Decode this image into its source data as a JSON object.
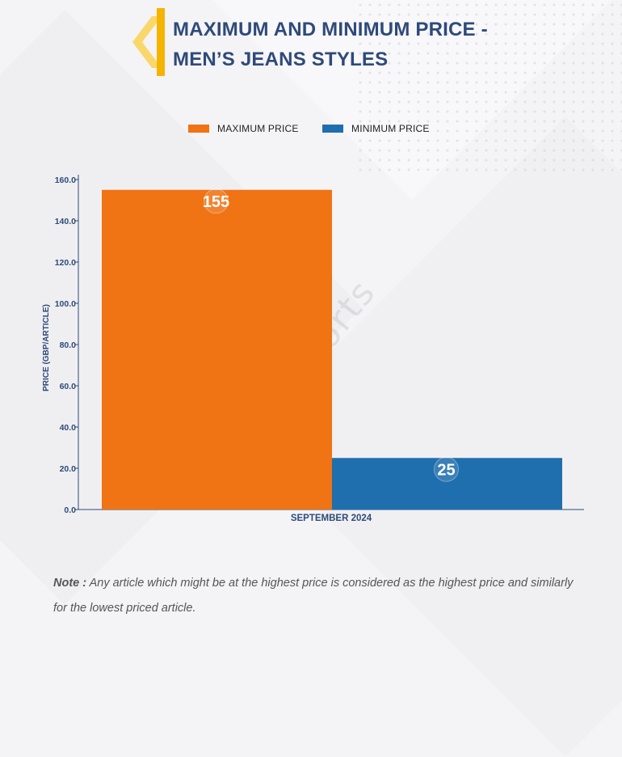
{
  "title": {
    "line1": "MAXIMUM AND MINIMUM PRICE -",
    "line2": "MEN’S JEANS STYLES"
  },
  "watermark": "D&J Reports",
  "legend": [
    {
      "label": "MAXIMUM PRICE",
      "color": "#f07314"
    },
    {
      "label": "MINIMUM PRICE",
      "color": "#1f6fae"
    }
  ],
  "note": {
    "prefix": "Note :",
    "text": " Any article which might be at the highest price is considered as the highest price and similarly for the lowest priced article."
  },
  "chart_data": {
    "type": "bar",
    "categories": [
      "SEPTEMBER 2024"
    ],
    "series": [
      {
        "name": "MAXIMUM PRICE",
        "values": [
          155
        ],
        "color": "#f07314"
      },
      {
        "name": "MINIMUM PRICE",
        "values": [
          25
        ],
        "color": "#1f6fae"
      }
    ],
    "xlabel": "",
    "ylabel": "PRICE (GBP/ARTICLE)",
    "ylim": [
      0,
      160
    ],
    "yticks": [
      "0.0",
      "20.0",
      "40.0",
      "60.0",
      "80.0",
      "100.0",
      "120.0",
      "140.0",
      "160.0"
    ],
    "data_labels": [
      "155",
      "25"
    ],
    "grid": false,
    "legend_position": "top-center"
  }
}
